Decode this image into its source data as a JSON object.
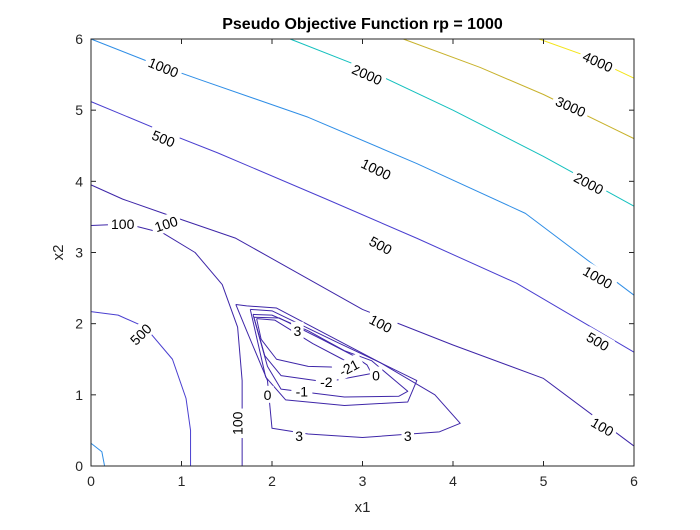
{
  "chart_data": {
    "type": "contour",
    "title": "Pseudo Objective Function rp = 1000",
    "xlabel": "x1",
    "ylabel": "x2",
    "xlim": [
      0,
      6
    ],
    "ylim": [
      0,
      6
    ],
    "xticks": [
      "0",
      "1",
      "2",
      "3",
      "4",
      "5",
      "6"
    ],
    "yticks": [
      "0",
      "1",
      "2",
      "3",
      "4",
      "5",
      "6"
    ],
    "grid": false,
    "box": true,
    "colors": {
      "low": "#3e26a8",
      "mid_low": "#4a3fd0",
      "mid": "#2f8ee6",
      "mid_high": "#14c0be",
      "high": "#c8b22c",
      "highest": "#f3e41a",
      "axis": "#262626"
    },
    "levels": [
      {
        "value": -2,
        "color": "#3e26a8",
        "polylines": [
          [
            [
              1.83,
              2.07
            ],
            [
              2.03,
              2.05
            ],
            [
              2.45,
              1.72
            ],
            [
              2.78,
              1.5
            ],
            [
              2.95,
              1.38
            ],
            [
              2.4,
              1.4
            ],
            [
              2.05,
              1.5
            ],
            [
              1.88,
              1.78
            ],
            [
              1.83,
              2.07
            ]
          ]
        ]
      },
      {
        "value": -1,
        "color": "#3e26a8",
        "polylines": [
          [
            [
              1.8,
              2.09
            ],
            [
              2.08,
              2.08
            ],
            [
              2.55,
              1.78
            ],
            [
              2.9,
              1.55
            ],
            [
              3.05,
              1.42
            ],
            [
              3.1,
              1.3
            ],
            [
              2.6,
              1.18
            ],
            [
              2.1,
              1.27
            ],
            [
              1.92,
              1.55
            ],
            [
              1.8,
              2.09
            ]
          ]
        ]
      },
      {
        "value": 0,
        "color": "#3e26a8",
        "polylines": [
          [
            [
              1.79,
              2.13
            ],
            [
              2.0,
              2.12
            ],
            [
              2.4,
              1.9
            ],
            [
              2.8,
              1.62
            ],
            [
              3.1,
              1.48
            ],
            [
              3.5,
              1.05
            ],
            [
              3.4,
              0.98
            ],
            [
              2.8,
              0.97
            ],
            [
              2.1,
              1.08
            ],
            [
              1.95,
              1.4
            ],
            [
              1.79,
              2.13
            ]
          ]
        ]
      },
      {
        "value": 1,
        "color": "#3e26a8",
        "polylines": [
          [
            [
              1.76,
              2.2
            ],
            [
              2.0,
              2.18
            ],
            [
              2.7,
              1.75
            ],
            [
              3.2,
              1.45
            ],
            [
              3.6,
              1.2
            ],
            [
              3.5,
              0.9
            ],
            [
              2.8,
              0.85
            ],
            [
              2.15,
              0.93
            ],
            [
              1.93,
              1.25
            ],
            [
              1.76,
              2.2
            ]
          ]
        ]
      },
      {
        "value": 3,
        "color": "#3e26a8",
        "polylines": [
          [
            [
              1.6,
              2.27
            ],
            [
              1.72,
              2.25
            ],
            [
              2.05,
              2.22
            ],
            [
              3.2,
              1.45
            ],
            [
              3.8,
              1.0
            ],
            [
              4.08,
              0.6
            ],
            [
              3.85,
              0.48
            ],
            [
              3.0,
              0.4
            ],
            [
              2.4,
              0.45
            ],
            [
              2.0,
              0.53
            ],
            [
              1.95,
              1.2
            ],
            [
              1.72,
              1.9
            ],
            [
              1.6,
              2.27
            ]
          ]
        ]
      },
      {
        "value": 100,
        "color": "#3e26a8",
        "polylines": [
          [
            [
              0,
              3.38
            ],
            [
              0.4,
              3.4
            ],
            [
              0.8,
              3.27
            ],
            [
              1.15,
              3.0
            ],
            [
              1.45,
              2.55
            ],
            [
              1.62,
              1.95
            ],
            [
              1.67,
              1.2
            ],
            [
              1.67,
              0
            ]
          ],
          [
            [
              0,
              3.95
            ],
            [
              0.35,
              3.75
            ],
            [
              0.8,
              3.55
            ],
            [
              1.6,
              3.2
            ],
            [
              3.0,
              2.2
            ],
            [
              4.0,
              1.7
            ],
            [
              5.0,
              1.23
            ],
            [
              6.0,
              0.28
            ]
          ]
        ]
      },
      {
        "value": 500,
        "color": "#4a3fd0",
        "polylines": [
          [
            [
              0,
              2.17
            ],
            [
              0.3,
              2.12
            ],
            [
              0.6,
              1.95
            ],
            [
              0.9,
              1.5
            ],
            [
              1.05,
              0.95
            ],
            [
              1.1,
              0.5
            ],
            [
              1.1,
              0
            ]
          ],
          [
            [
              0,
              5.12
            ],
            [
              0.7,
              4.75
            ],
            [
              1.4,
              4.4
            ],
            [
              2.6,
              3.75
            ],
            [
              3.6,
              3.2
            ],
            [
              4.7,
              2.57
            ],
            [
              6.0,
              1.6
            ]
          ]
        ]
      },
      {
        "value": 1000,
        "color": "#2f8ee6",
        "polylines": [
          [
            [
              0,
              0.32
            ],
            [
              0.12,
              0.2
            ],
            [
              0.15,
              0
            ]
          ],
          [
            [
              0,
              6.0
            ],
            [
              0.6,
              5.7
            ],
            [
              1.2,
              5.43
            ],
            [
              2.4,
              4.9
            ],
            [
              3.6,
              4.25
            ],
            [
              4.8,
              3.55
            ],
            [
              6.0,
              2.4
            ]
          ]
        ]
      },
      {
        "value": 2000,
        "color": "#14c0be",
        "polylines": [
          [
            [
              2.2,
              6.0
            ],
            [
              3.0,
              5.6
            ],
            [
              4.0,
              5.0
            ],
            [
              5.0,
              4.35
            ],
            [
              6.0,
              3.65
            ]
          ]
        ]
      },
      {
        "value": 3000,
        "color": "#c8b22c",
        "polylines": [
          [
            [
              3.45,
              6.0
            ],
            [
              4.3,
              5.6
            ],
            [
              5.0,
              5.22
            ],
            [
              6.0,
              4.6
            ]
          ]
        ]
      },
      {
        "value": 4000,
        "color": "#f3e41a",
        "polylines": [
          [
            [
              4.95,
              6.0
            ],
            [
              5.5,
              5.75
            ],
            [
              6.0,
              5.45
            ]
          ]
        ]
      }
    ],
    "contour_labels": [
      {
        "text": "1000",
        "x": 0.8,
        "y": 5.6,
        "angle": 22
      },
      {
        "text": "2000",
        "x": 3.05,
        "y": 5.5,
        "angle": 24
      },
      {
        "text": "4000",
        "x": 5.6,
        "y": 5.68,
        "angle": 24
      },
      {
        "text": "3000",
        "x": 5.3,
        "y": 5.05,
        "angle": 24
      },
      {
        "text": "500",
        "x": 0.8,
        "y": 4.6,
        "angle": 22
      },
      {
        "text": "1000",
        "x": 3.15,
        "y": 4.17,
        "angle": 26
      },
      {
        "text": "2000",
        "x": 5.5,
        "y": 3.97,
        "angle": 28
      },
      {
        "text": "100",
        "x": 0.35,
        "y": 3.4,
        "angle": 0
      },
      {
        "text": "100",
        "x": 0.83,
        "y": 3.4,
        "angle": -18
      },
      {
        "text": "500",
        "x": 3.2,
        "y": 3.1,
        "angle": 28
      },
      {
        "text": "1000",
        "x": 5.6,
        "y": 2.65,
        "angle": 30
      },
      {
        "text": "100",
        "x": 3.2,
        "y": 2.0,
        "angle": 28
      },
      {
        "text": "500",
        "x": 5.6,
        "y": 1.75,
        "angle": 30
      },
      {
        "text": "100",
        "x": 5.65,
        "y": 0.55,
        "angle": 30
      },
      {
        "text": "500",
        "x": 0.55,
        "y": 1.85,
        "angle": -45
      },
      {
        "text": "3",
        "x": 2.28,
        "y": 1.9,
        "angle": 0
      },
      {
        "text": "-21",
        "x": 2.85,
        "y": 1.38,
        "angle": -28
      },
      {
        "text": "0",
        "x": 3.15,
        "y": 1.27,
        "angle": 0
      },
      {
        "text": "-2",
        "x": 2.6,
        "y": 1.18,
        "angle": 0
      },
      {
        "text": "-1",
        "x": 2.33,
        "y": 1.05,
        "angle": 0
      },
      {
        "text": "0",
        "x": 1.95,
        "y": 1.0,
        "angle": 0
      },
      {
        "text": "100",
        "x": 1.62,
        "y": 0.6,
        "angle": -90
      },
      {
        "text": "3",
        "x": 2.3,
        "y": 0.42,
        "angle": 0
      },
      {
        "text": "3",
        "x": 3.5,
        "y": 0.42,
        "angle": 0
      }
    ]
  }
}
